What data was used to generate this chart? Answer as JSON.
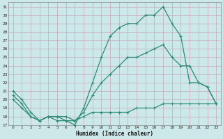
{
  "xlabel": "Humidex (Indice chaleur)",
  "color": "#2e8b75",
  "bg_color": "#cce8e8",
  "grid_color": "#b8d8d8",
  "xlim": [
    -0.5,
    23.5
  ],
  "ylim": [
    17,
    31.5
  ],
  "yticks": [
    17,
    18,
    19,
    20,
    21,
    22,
    23,
    24,
    25,
    26,
    27,
    28,
    29,
    30,
    31
  ],
  "xticks": [
    0,
    1,
    2,
    3,
    4,
    5,
    6,
    7,
    8,
    9,
    10,
    11,
    12,
    13,
    14,
    15,
    16,
    17,
    18,
    19,
    20,
    21,
    22,
    23
  ],
  "line_max": {
    "x": [
      0,
      1,
      2,
      3,
      4,
      5,
      6,
      7,
      8,
      9,
      10,
      11,
      12,
      13,
      14,
      15,
      16,
      17,
      18,
      19,
      20,
      21,
      22,
      23
    ],
    "y": [
      21,
      20,
      18.5,
      17.5,
      18,
      17.5,
      17.5,
      17,
      19,
      22,
      25,
      27.5,
      28.5,
      29,
      29,
      30,
      30,
      31,
      29,
      27.5,
      22,
      22,
      21.5,
      19.5
    ]
  },
  "line_mean": {
    "x": [
      0,
      1,
      2,
      3,
      4,
      5,
      6,
      7,
      8,
      9,
      10,
      11,
      12,
      13,
      14,
      15,
      16,
      17,
      18,
      19,
      20,
      21,
      22,
      23
    ],
    "y": [
      20.5,
      19.5,
      18,
      17.5,
      18,
      18,
      18,
      17.5,
      18.5,
      20.5,
      22,
      23,
      24,
      25,
      25,
      25.5,
      26,
      26.5,
      25,
      24,
      24,
      22,
      21.5,
      19.5
    ]
  },
  "line_min": {
    "x": [
      0,
      1,
      2,
      3,
      4,
      5,
      6,
      7,
      8,
      9,
      10,
      11,
      12,
      13,
      14,
      15,
      16,
      17,
      18,
      19,
      20,
      21,
      22,
      23
    ],
    "y": [
      20,
      19,
      18,
      17.5,
      18,
      18,
      17.5,
      17.5,
      18,
      18.5,
      18.5,
      18.5,
      18.5,
      18.5,
      19,
      19,
      19,
      19.5,
      19.5,
      19.5,
      19.5,
      19.5,
      19.5,
      19.5
    ]
  }
}
